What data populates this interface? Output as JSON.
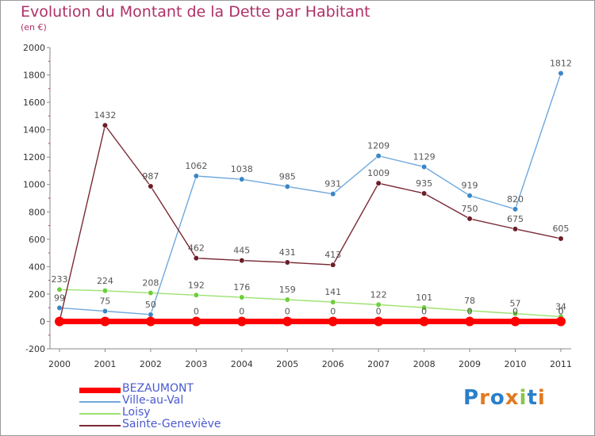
{
  "title": "Evolution du Montant de la Dette par Habitant",
  "unit": "(en €)",
  "logo": {
    "text": "Proxiti",
    "letter_colors": [
      "#2a7fc9",
      "#e07a22",
      "#2a7fc9",
      "#e07a22",
      "#8bc34a",
      "#2a7fc9",
      "#e07a22"
    ]
  },
  "chart_data": {
    "type": "line",
    "title": "Evolution du Montant de la Dette par Habitant",
    "ylabel": "(en €)",
    "x": [
      "2000",
      "2001",
      "2002",
      "2003",
      "2004",
      "2005",
      "2006",
      "2007",
      "2008",
      "2009",
      "2010",
      "2011"
    ],
    "y_ticks": [
      "2000",
      "1800",
      "1600",
      "1400",
      "1200",
      "1000",
      "800",
      "600",
      "400",
      "200",
      "0",
      "-200"
    ],
    "ylim": [
      -200,
      2000
    ],
    "grid": false,
    "legend_position": "bottom-left",
    "series": [
      {
        "name": "BEZAUMONT",
        "color": "#ff0000",
        "values": [
          0,
          0,
          0,
          0,
          0,
          0,
          0,
          0,
          0,
          0,
          0,
          0
        ],
        "labels": [
          "",
          "",
          "",
          "0",
          "0",
          "0",
          "0",
          "0",
          "0",
          "0",
          "0",
          "0"
        ]
      },
      {
        "name": "Ville-au-Val",
        "color": "#6fa8dc",
        "marker": "#3a86c8",
        "values": [
          99,
          75,
          50,
          1062,
          1038,
          985,
          931,
          1209,
          1129,
          919,
          820,
          1812
        ],
        "labels": [
          "99",
          "75",
          "50",
          "1062",
          "1038",
          "985",
          "931",
          "1209",
          "1129",
          "919",
          "820",
          "1812"
        ]
      },
      {
        "name": "Loisy",
        "color": "#9be26f",
        "marker": "#6ecf3a",
        "values": [
          233,
          224,
          208,
          192,
          176,
          159,
          141,
          122,
          101,
          78,
          57,
          34
        ],
        "labels": [
          "233",
          "224",
          "208",
          "192",
          "176",
          "159",
          "141",
          "122",
          "101",
          "78",
          "57",
          "34"
        ]
      },
      {
        "name": "Sainte-Geneviève",
        "color": "#7a2a35",
        "marker": "#6b1e28",
        "values": [
          0,
          1432,
          987,
          462,
          445,
          431,
          413,
          1009,
          935,
          750,
          675,
          605
        ],
        "labels": [
          "",
          "1432",
          "987",
          "462",
          "445",
          "431",
          "413",
          "1009",
          "935",
          "750",
          "675",
          "605"
        ]
      }
    ],
    "extra_labels": [
      {
        "x": "2011",
        "value": 0,
        "text": "0"
      }
    ]
  }
}
